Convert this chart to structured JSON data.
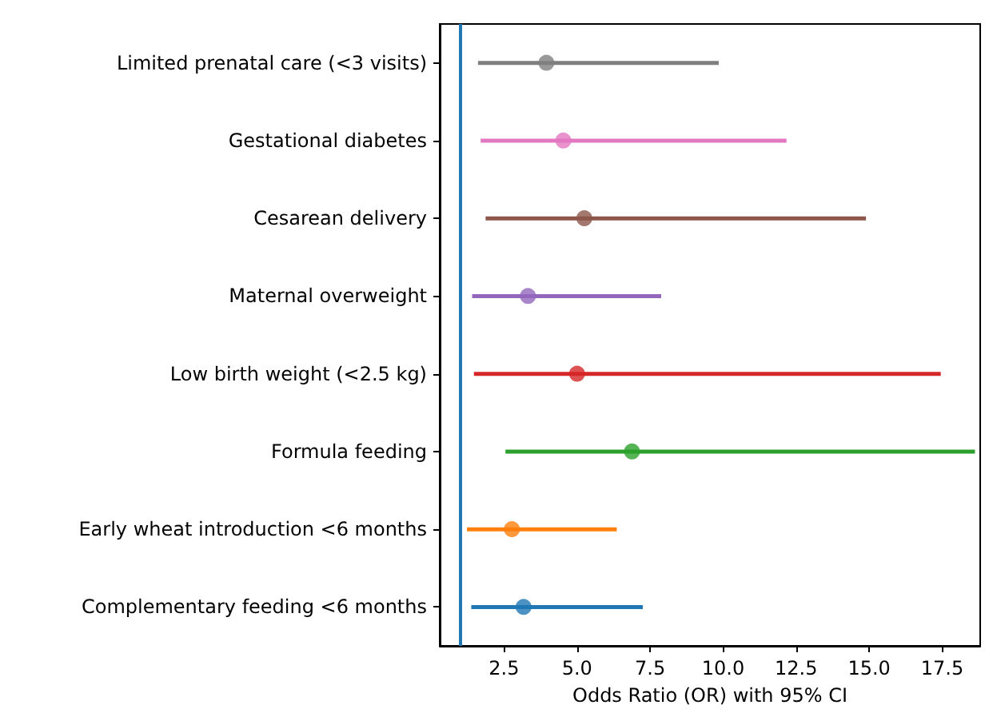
{
  "chart_data": {
    "type": "scatter",
    "orientation": "horizontal",
    "xlabel": "Odds Ratio (OR) with 95% CI",
    "categories": [
      "Limited prenatal care (<3 visits)",
      "Gestational diabetes",
      "Cesarean delivery",
      "Maternal overweight",
      "Low birth weight (<2.5 kg)",
      "Formula feeding",
      "Early wheat introduction <6 months",
      "Complementary feeding <6 months"
    ],
    "values": [
      3.95,
      4.53,
      5.25,
      3.32,
      5.0,
      6.88,
      2.77,
      3.17
    ],
    "errors": [
      [
        1.61,
        9.85
      ],
      [
        1.7,
        12.17
      ],
      [
        1.87,
        14.89
      ],
      [
        1.41,
        7.88
      ],
      [
        1.47,
        17.45
      ],
      [
        2.55,
        18.62
      ],
      [
        1.23,
        6.36
      ],
      [
        1.38,
        7.25
      ]
    ],
    "colors": [
      "#7f7f7f",
      "#e377c2",
      "#8c564b",
      "#9467bd",
      "#d62728",
      "#2ca02c",
      "#ff7f0e",
      "#1f77b4"
    ],
    "xlim": [
      0.3,
      18.8
    ],
    "xticks": [
      {
        "value": 2.5,
        "label": "2.5"
      },
      {
        "value": 5,
        "label": "5.0"
      },
      {
        "value": 7.5,
        "label": "7.5"
      },
      {
        "value": 10,
        "label": "10.0"
      },
      {
        "value": 12.5,
        "label": "12.5"
      },
      {
        "value": 15,
        "label": "15.0"
      },
      {
        "value": 17.5,
        "label": "17.5"
      }
    ],
    "ref_lines": [
      {
        "axis": "x",
        "value": 1,
        "color": "#1f77b4"
      }
    ],
    "marker": "circle",
    "grid": false
  }
}
